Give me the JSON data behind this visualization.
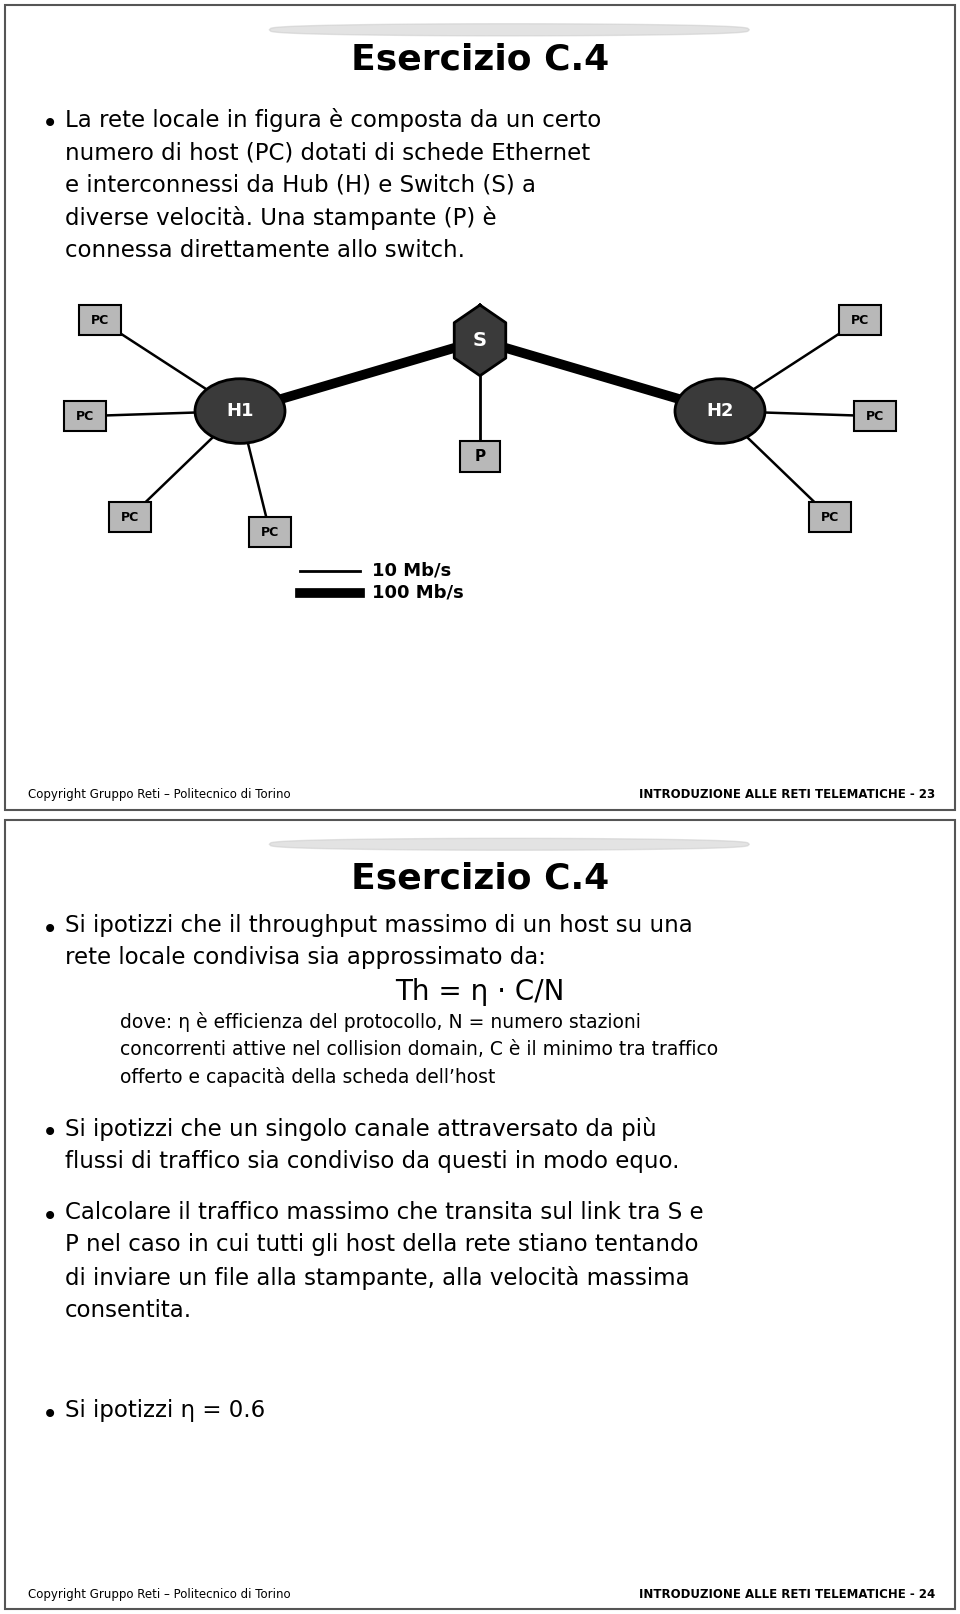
{
  "title1": "Esercizio C.4",
  "title2": "Esercizio C.4",
  "bullet1_text": "La rete locale in figura è composta da un certo\nnumero di host (PC) dotati di schede Ethernet\ne interconnessi da Hub (H) e Switch (S) a\ndiverse velocità. Una stampante (P) è\nconnessa direttamente allo switch.",
  "formula": "Th = η · C/N",
  "bullet2_text": "Si ipotizzi che il throughput massimo di un host su una\nrete locale condivisa sia approssimato da:",
  "dove_text": "dove: η è efficienza del protocollo, N = numero stazioni\nconcorrenti attive nel collision domain, C è il minimo tra traffico\nofferto e capacità della scheda dell’host",
  "bullet3_text": "Si ipotizzi che un singolo canale attraversato da più\nflussi di traffico sia condiviso da questi in modo equo.",
  "bullet4_text": "Calcolare il traffico massimo che transita sul link tra S e\nP nel caso in cui tutti gli host della rete stiano tentando\ndi inviare un file alla stampante, alla velocità massima\nconsentita.",
  "bullet5_text": "Si ipotizzi η = 0.6",
  "footer_left": "Copyright Gruppo Reti – Politecnico di Torino",
  "footer_right1": "INTRODUZIONE ALLE RETI TELEMATICHE - 23",
  "footer_right2": "INTRODUZIONE ALLE RETI TELEMATICHE - 24",
  "legend_10": "10 Mb/s",
  "legend_100": "100 Mb/s",
  "bg_color": "#ffffff",
  "text_color": "#000000",
  "node_dark": "#3a3a3a",
  "box_gray": "#b8b8b8"
}
